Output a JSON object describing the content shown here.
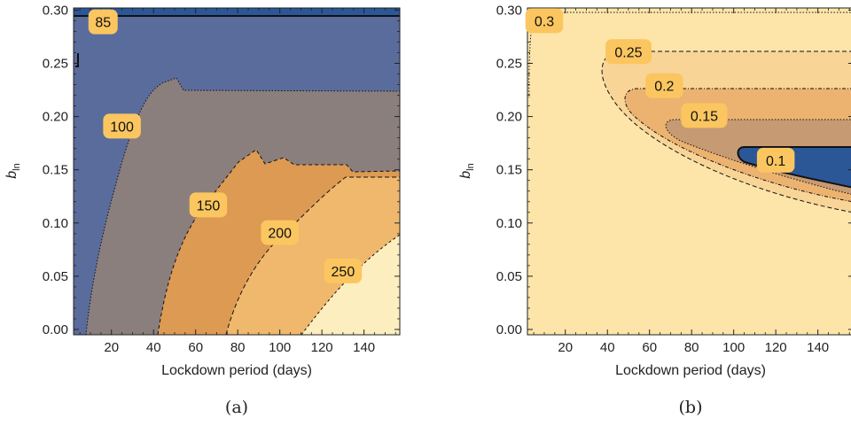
{
  "chart_data": [
    {
      "type": "contour",
      "panel_label": "(a)",
      "xlabel": "Lockdown period (days)",
      "ylabel": "b",
      "ylabel_subscript": "ln",
      "xlim": [
        2,
        157
      ],
      "ylim": [
        -0.005,
        0.302
      ],
      "xticks": [
        20,
        40,
        60,
        80,
        100,
        120,
        140
      ],
      "yticks": [
        0.0,
        0.05,
        0.1,
        0.15,
        0.2,
        0.25,
        0.3
      ],
      "xtick_labels": [
        "20",
        "40",
        "60",
        "80",
        "100",
        "120",
        "140"
      ],
      "ytick_labels": [
        "0.00",
        "0.05",
        "0.10",
        "0.15",
        "0.20",
        "0.25",
        "0.30"
      ],
      "contour_levels": [
        {
          "label": "85",
          "at": [
            16,
            0.289
          ]
        },
        {
          "label": "100",
          "at": [
            25,
            0.191
          ]
        },
        {
          "label": "150",
          "at": [
            66,
            0.117
          ]
        },
        {
          "label": "200",
          "at": [
            100,
            0.091
          ]
        },
        {
          "label": "250",
          "at": [
            130,
            0.055
          ]
        }
      ],
      "colors": {
        "band_low": "#2b5797",
        "band_1": "#5a6c9c",
        "band_2": "#8a7f7c",
        "band_3": "#dd9a52",
        "band_4": "#efb86c",
        "band_5": "#fdeec0"
      }
    },
    {
      "type": "contour",
      "panel_label": "(b)",
      "xlabel": "Lockdown period (days)",
      "ylabel": "b",
      "ylabel_subscript": "ln",
      "xlim": [
        2,
        157
      ],
      "ylim": [
        -0.005,
        0.302
      ],
      "xticks": [
        20,
        40,
        60,
        80,
        100,
        120,
        140
      ],
      "yticks": [
        0.0,
        0.05,
        0.1,
        0.15,
        0.2,
        0.25,
        0.3
      ],
      "xtick_labels": [
        "20",
        "40",
        "60",
        "80",
        "100",
        "120",
        "140"
      ],
      "ytick_labels": [
        "0.00",
        "0.05",
        "0.10",
        "0.15",
        "0.20",
        "0.25",
        "0.30"
      ],
      "contour_levels": [
        {
          "label": "0.3",
          "at": [
            10,
            0.29
          ]
        },
        {
          "label": "0.25",
          "at": [
            50,
            0.261
          ]
        },
        {
          "label": "0.2",
          "at": [
            67,
            0.229
          ]
        },
        {
          "label": "0.15",
          "at": [
            86,
            0.201
          ]
        },
        {
          "label": "0.1",
          "at": [
            120,
            0.159
          ]
        }
      ],
      "colors": {
        "band_1": "#fde5a9",
        "band_2": "#f8d497",
        "band_3": "#ecb26f",
        "band_4": "#c69a72",
        "band_low": "#2b5797"
      }
    }
  ]
}
